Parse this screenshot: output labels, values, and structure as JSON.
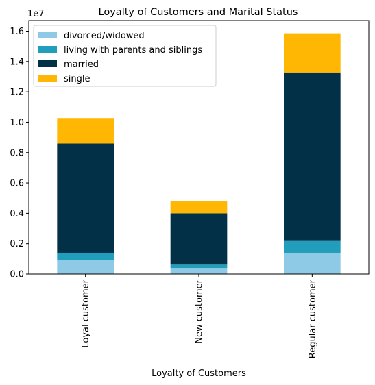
{
  "chart_data": {
    "type": "bar",
    "stacked": true,
    "title": "Loyalty of Customers and Marital Status",
    "xlabel": "Loyalty of Customers",
    "ylabel": "",
    "y_offset_label": "1e7",
    "categories": [
      "Loyal customer",
      "New customer",
      "Regular customer"
    ],
    "series": [
      {
        "name": "divorced/widowed",
        "color": "#8ecae6",
        "values": [
          900000,
          400000,
          1400000
        ]
      },
      {
        "name": "living with parents and siblings",
        "color": "#219ebc",
        "values": [
          500000,
          220000,
          780000
        ]
      },
      {
        "name": "married",
        "color": "#023047",
        "values": [
          7200000,
          3380000,
          11100000
        ]
      },
      {
        "name": "single",
        "color": "#ffb703",
        "values": [
          1680000,
          820000,
          2580000
        ]
      }
    ],
    "ylim": [
      0,
      16700000
    ],
    "yticks": [
      0,
      2000000,
      4000000,
      6000000,
      8000000,
      10000000,
      12000000,
      14000000,
      16000000
    ],
    "ytick_labels": [
      "0.0",
      "0.2",
      "0.4",
      "0.6",
      "0.8",
      "1.0",
      "1.2",
      "1.4",
      "1.6"
    ],
    "legend_position": "top-left",
    "grid": false
  }
}
